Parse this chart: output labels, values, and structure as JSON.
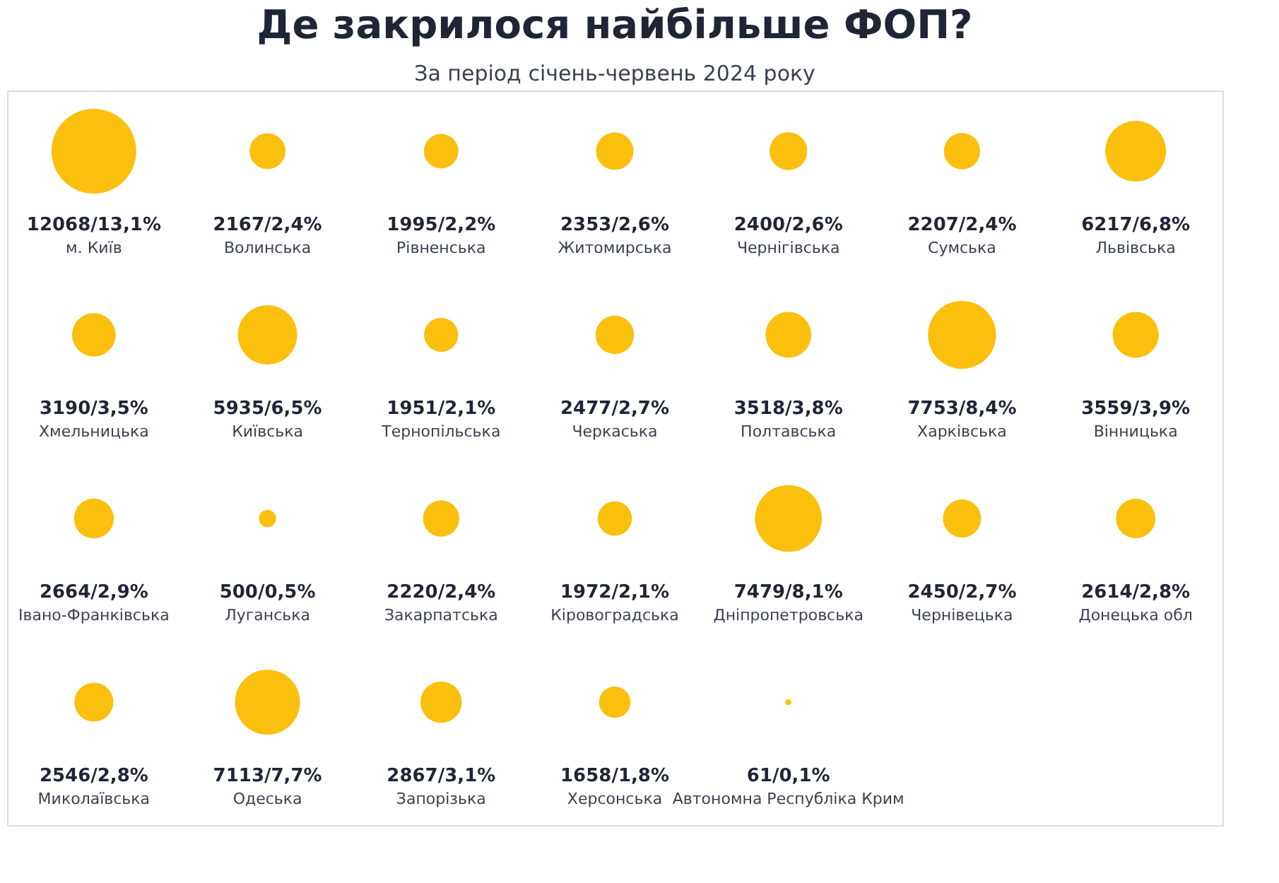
{
  "chart_data": {
    "type": "other",
    "title": "Де закрилося найбільше ФОП?",
    "subtitle": "За період січень-червень 2024 року",
    "color": "#fbbf0e",
    "categories": [
      "м. Київ",
      "Волинська",
      "Рівненська",
      "Житомирська",
      "Чернігівська",
      "Сумська",
      "Львівська",
      "Хмельницька",
      "Київська",
      "Тернопільська",
      "Черкаська",
      "Полтавська",
      "Харківська",
      "Вінницька",
      "Івано-Франківська",
      "Луганська",
      "Закарпатська",
      "Кіровоградська",
      "Дніпропетровська",
      "Чернівецька",
      "Донецька обл",
      "Миколаївська",
      "Одеська",
      "Запорізька",
      "Херсонська",
      "Автономна Республіка Крим"
    ],
    "values": [
      12068,
      2167,
      1995,
      2353,
      2400,
      2207,
      6217,
      3190,
      5935,
      1951,
      2477,
      3518,
      7753,
      3559,
      2664,
      500,
      2220,
      1972,
      7479,
      2450,
      2614,
      2546,
      7113,
      2867,
      1658,
      61
    ],
    "value_labels": [
      "12068/13,1%",
      "2167/2,4%",
      "1995/2,2%",
      "2353/2,6%",
      "2400/2,6%",
      "2207/2,4%",
      "6217/6,8%",
      "3190/3,5%",
      "5935/6,5%",
      "1951/2,1%",
      "2477/2,7%",
      "3518/3,8%",
      "7753/8,4%",
      "3559/3,9%",
      "2664/2,9%",
      "500/0,5%",
      "2220/2,4%",
      "1972/2,1%",
      "7479/8,1%",
      "2450/2,7%",
      "2614/2,8%",
      "2546/2,8%",
      "7113/7,7%",
      "2867/3,1%",
      "1658/1,8%",
      "61/0,1%"
    ]
  }
}
